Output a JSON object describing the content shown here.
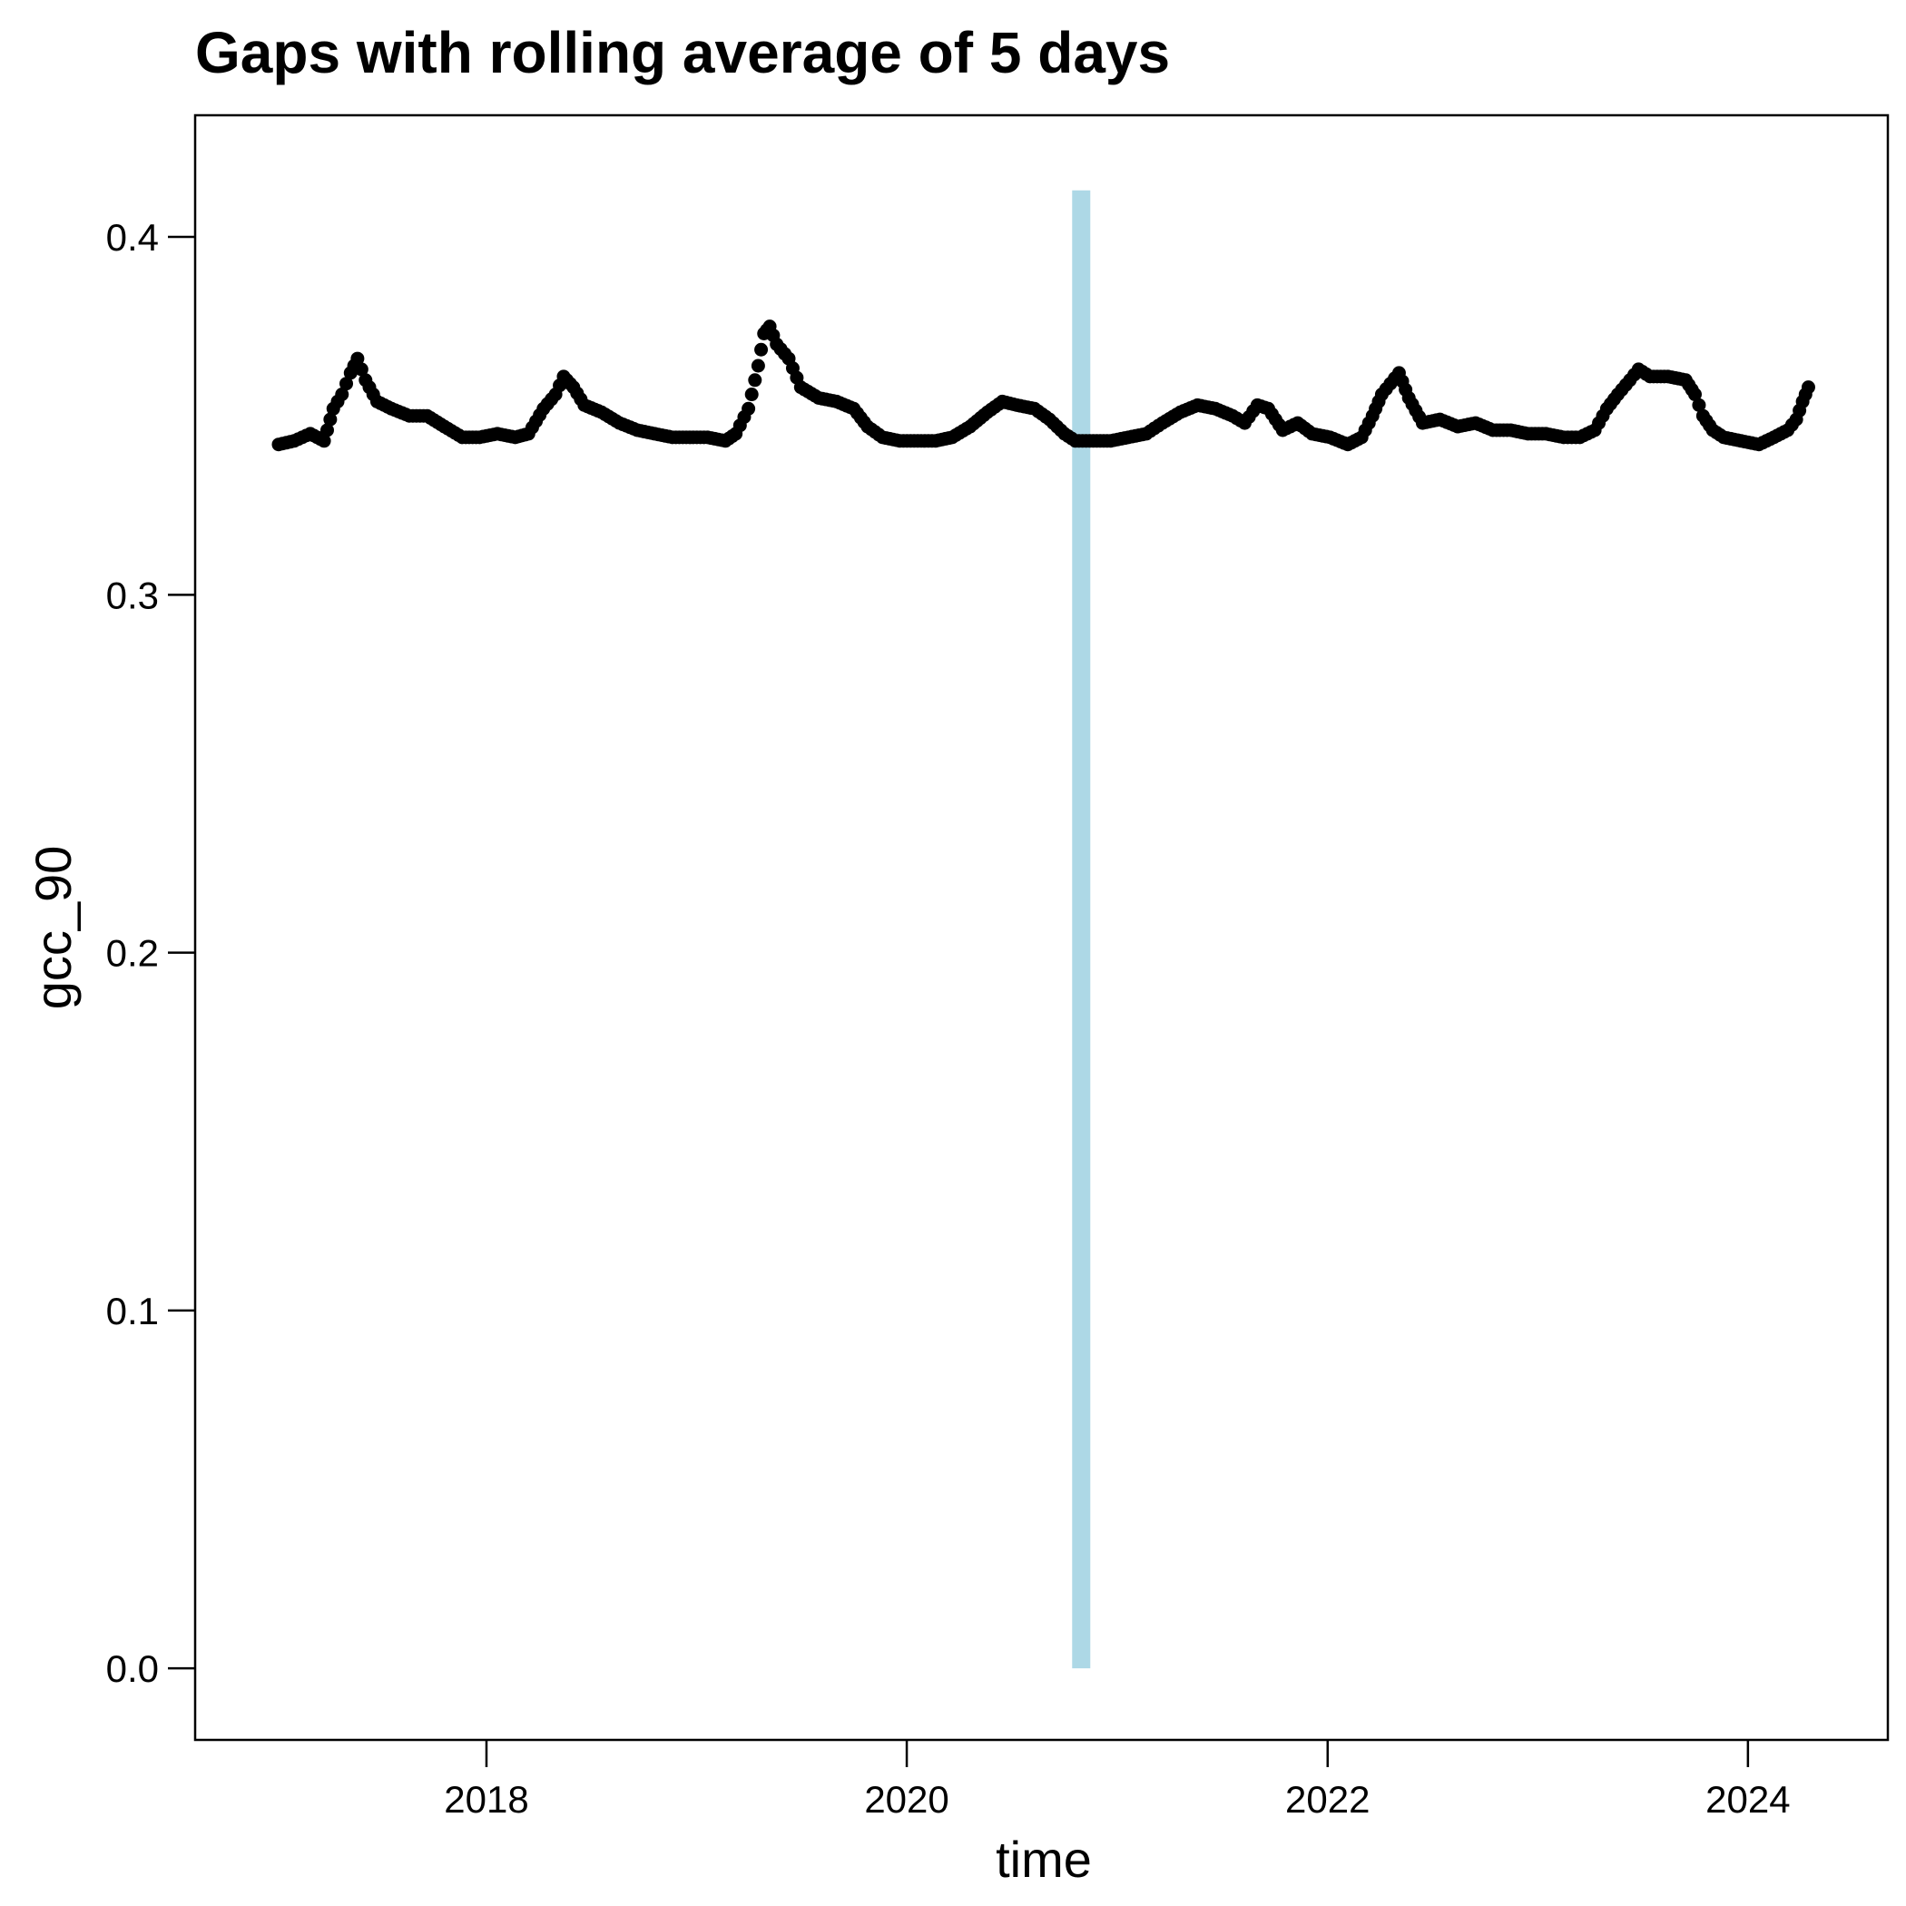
{
  "chart_data": {
    "type": "scatter",
    "title": "Gaps with rolling average of 5 days",
    "xlabel": "time",
    "ylabel": "gcc_90",
    "x_axis_type": "date",
    "xlim": [
      "2016-08-13",
      "2024-08-31"
    ],
    "ylim": [
      -0.02,
      0.434
    ],
    "x_ticks": [
      "2018",
      "2020",
      "2022",
      "2024"
    ],
    "y_ticks": [
      "0.0",
      "0.1",
      "0.2",
      "0.3",
      "0.4"
    ],
    "grid": false,
    "legend": "none",
    "colors": {
      "points": "#000000",
      "gap": "#add8e6"
    },
    "gaps": [
      {
        "x": "2020-10-30",
        "y_from": 0.0,
        "y_to": 0.413
      }
    ],
    "series": [
      {
        "points": [
          [
            "2017-01-05",
            0.342
          ],
          [
            "2017-02-01",
            0.343
          ],
          [
            "2017-03-01",
            0.345
          ],
          [
            "2017-03-25",
            0.343
          ],
          [
            "2017-04-10",
            0.352
          ],
          [
            "2017-04-25",
            0.356
          ],
          [
            "2017-05-10",
            0.362
          ],
          [
            "2017-05-22",
            0.366
          ],
          [
            "2017-06-05",
            0.36
          ],
          [
            "2017-06-25",
            0.354
          ],
          [
            "2017-07-20",
            0.352
          ],
          [
            "2017-08-20",
            0.35
          ],
          [
            "2017-09-20",
            0.35
          ],
          [
            "2017-10-20",
            0.347
          ],
          [
            "2017-11-20",
            0.344
          ],
          [
            "2017-12-20",
            0.344
          ],
          [
            "2018-01-20",
            0.345
          ],
          [
            "2018-02-20",
            0.344
          ],
          [
            "2018-03-15",
            0.345
          ],
          [
            "2018-04-10",
            0.352
          ],
          [
            "2018-05-01",
            0.356
          ],
          [
            "2018-05-15",
            0.361
          ],
          [
            "2018-06-01",
            0.358
          ],
          [
            "2018-06-20",
            0.353
          ],
          [
            "2018-07-20",
            0.351
          ],
          [
            "2018-08-20",
            0.348
          ],
          [
            "2018-09-20",
            0.346
          ],
          [
            "2018-10-20",
            0.345
          ],
          [
            "2018-11-20",
            0.344
          ],
          [
            "2018-12-20",
            0.344
          ],
          [
            "2019-01-20",
            0.344
          ],
          [
            "2019-02-20",
            0.343
          ],
          [
            "2019-03-10",
            0.345
          ],
          [
            "2019-04-01",
            0.352
          ],
          [
            "2019-04-18",
            0.364
          ],
          [
            "2019-04-28",
            0.373
          ],
          [
            "2019-05-08",
            0.375
          ],
          [
            "2019-05-20",
            0.37
          ],
          [
            "2019-06-10",
            0.366
          ],
          [
            "2019-07-01",
            0.358
          ],
          [
            "2019-08-01",
            0.355
          ],
          [
            "2019-09-01",
            0.354
          ],
          [
            "2019-10-01",
            0.352
          ],
          [
            "2019-10-25",
            0.347
          ],
          [
            "2019-11-20",
            0.344
          ],
          [
            "2019-12-20",
            0.343
          ],
          [
            "2020-01-20",
            0.343
          ],
          [
            "2020-02-20",
            0.343
          ],
          [
            "2020-03-20",
            0.344
          ],
          [
            "2020-04-20",
            0.347
          ],
          [
            "2020-05-20",
            0.351
          ],
          [
            "2020-06-15",
            0.354
          ],
          [
            "2020-07-10",
            0.353
          ],
          [
            "2020-08-10",
            0.352
          ],
          [
            "2020-09-05",
            0.349
          ],
          [
            "2020-10-01",
            0.345
          ],
          [
            "2020-10-20",
            0.343
          ],
          [
            "2020-11-20",
            0.343
          ],
          [
            "2020-12-20",
            0.343
          ],
          [
            "2021-01-20",
            0.344
          ],
          [
            "2021-02-20",
            0.345
          ],
          [
            "2021-03-20",
            0.348
          ],
          [
            "2021-04-20",
            0.351
          ],
          [
            "2021-05-20",
            0.353
          ],
          [
            "2021-06-20",
            0.352
          ],
          [
            "2021-07-20",
            0.35
          ],
          [
            "2021-08-10",
            0.348
          ],
          [
            "2021-09-01",
            0.353
          ],
          [
            "2021-09-20",
            0.352
          ],
          [
            "2021-10-15",
            0.346
          ],
          [
            "2021-11-10",
            0.348
          ],
          [
            "2021-12-05",
            0.345
          ],
          [
            "2022-01-05",
            0.344
          ],
          [
            "2022-02-05",
            0.342
          ],
          [
            "2022-03-01",
            0.344
          ],
          [
            "2022-03-20",
            0.35
          ],
          [
            "2022-04-05",
            0.356
          ],
          [
            "2022-04-20",
            0.359
          ],
          [
            "2022-05-05",
            0.362
          ],
          [
            "2022-05-22",
            0.355
          ],
          [
            "2022-06-15",
            0.348
          ],
          [
            "2022-07-15",
            0.349
          ],
          [
            "2022-08-15",
            0.347
          ],
          [
            "2022-09-15",
            0.348
          ],
          [
            "2022-10-15",
            0.346
          ],
          [
            "2022-11-15",
            0.346
          ],
          [
            "2022-12-15",
            0.345
          ],
          [
            "2023-01-15",
            0.345
          ],
          [
            "2023-02-15",
            0.344
          ],
          [
            "2023-03-15",
            0.344
          ],
          [
            "2023-04-10",
            0.346
          ],
          [
            "2023-05-01",
            0.352
          ],
          [
            "2023-05-20",
            0.356
          ],
          [
            "2023-06-10",
            0.36
          ],
          [
            "2023-06-25",
            0.363
          ],
          [
            "2023-07-15",
            0.361
          ],
          [
            "2023-08-15",
            0.361
          ],
          [
            "2023-09-15",
            0.36
          ],
          [
            "2023-10-01",
            0.356
          ],
          [
            "2023-10-15",
            0.35
          ],
          [
            "2023-11-01",
            0.346
          ],
          [
            "2023-11-20",
            0.344
          ],
          [
            "2023-12-20",
            0.343
          ],
          [
            "2024-01-20",
            0.342
          ],
          [
            "2024-02-15",
            0.344
          ],
          [
            "2024-03-10",
            0.346
          ],
          [
            "2024-03-25",
            0.349
          ],
          [
            "2024-04-05",
            0.354
          ],
          [
            "2024-04-15",
            0.358
          ]
        ]
      }
    ]
  }
}
